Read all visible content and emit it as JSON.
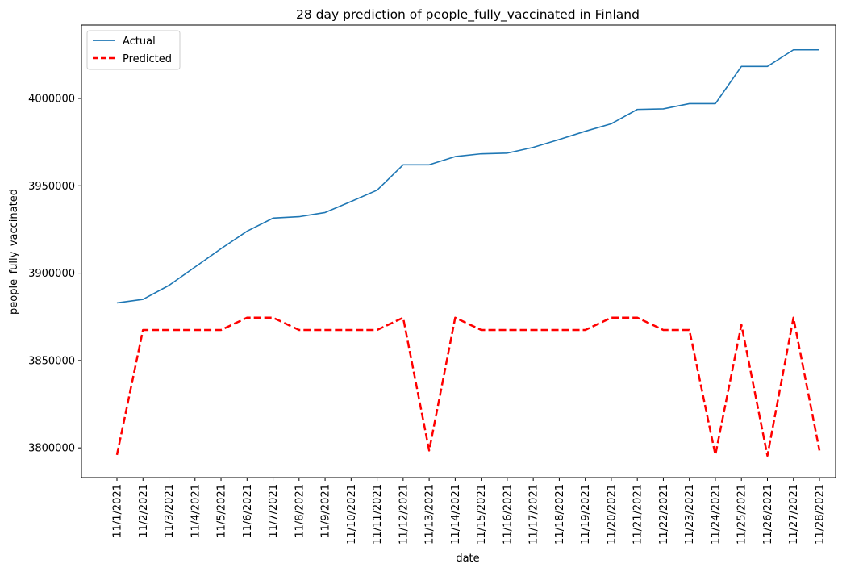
{
  "chart_data": {
    "type": "line",
    "title": "28 day prediction of people_fully_vaccinated in Finland",
    "xlabel": "date",
    "ylabel": "people_fully_vaccinated",
    "categories": [
      "11/1/2021",
      "11/2/2021",
      "11/3/2021",
      "11/4/2021",
      "11/5/2021",
      "11/6/2021",
      "11/7/2021",
      "11/8/2021",
      "11/9/2021",
      "11/10/2021",
      "11/11/2021",
      "11/12/2021",
      "11/13/2021",
      "11/14/2021",
      "11/15/2021",
      "11/16/2021",
      "11/17/2021",
      "11/18/2021",
      "11/19/2021",
      "11/20/2021",
      "11/21/2021",
      "11/22/2021",
      "11/23/2021",
      "11/24/2021",
      "11/25/2021",
      "11/26/2021",
      "11/27/2021",
      "11/28/2021"
    ],
    "yticks": [
      3800000,
      3850000,
      3900000,
      3950000,
      4000000
    ],
    "ylim": [
      3783000,
      4042000
    ],
    "grid": false,
    "legend_position": "top-left",
    "series": [
      {
        "name": "Actual",
        "color": "#1f77b4",
        "style": "solid",
        "values": [
          3883000,
          3885000,
          3893000,
          3903500,
          3914000,
          3924000,
          3931500,
          3932300,
          3934700,
          3941000,
          3947500,
          3962000,
          3962000,
          3966700,
          3968300,
          3968700,
          3972000,
          3976500,
          3981200,
          3985500,
          3993700,
          3994000,
          3997000,
          3997000,
          4018300,
          4018300,
          4027800,
          4027800
        ]
      },
      {
        "name": "Predicted",
        "color": "#ff0000",
        "style": "dashed",
        "values": [
          3796000,
          3867500,
          3867500,
          3867500,
          3867500,
          3874500,
          3874500,
          3867500,
          3867500,
          3867500,
          3867500,
          3874500,
          3798500,
          3874500,
          3867500,
          3867500,
          3867500,
          3867500,
          3867500,
          3874500,
          3874500,
          3867500,
          3867500,
          3796000,
          3870500,
          3795500,
          3874500,
          3798500
        ]
      }
    ]
  }
}
